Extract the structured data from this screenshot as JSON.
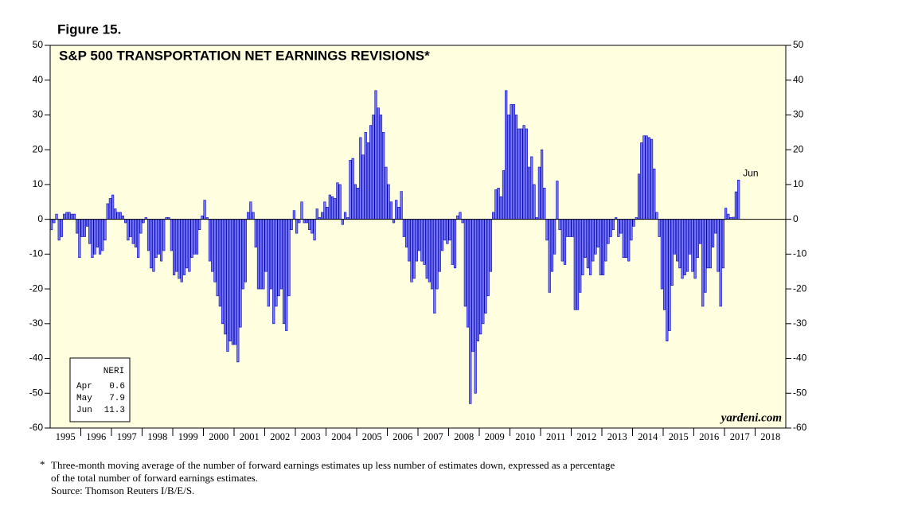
{
  "chart_data": {
    "type": "bar",
    "figure_label": "Figure 15.",
    "title": "S&P 500 TRANSPORTATION NET EARNINGS REVISIONS*",
    "categories": [
      "1995",
      "1996",
      "1997",
      "1998",
      "1999",
      "2000",
      "2001",
      "2002",
      "2003",
      "2004",
      "2005",
      "2006",
      "2007",
      "2008",
      "2009",
      "2010",
      "2011",
      "2012",
      "2013",
      "2014",
      "2015",
      "2016",
      "2017",
      "2018"
    ],
    "values": [
      [
        -3,
        -1,
        1.5,
        -6,
        -5,
        1.5,
        2,
        2,
        1.5,
        1.5,
        -4,
        -11
      ],
      [
        -5,
        -5,
        -2,
        -7,
        -11,
        -10,
        -8,
        -10,
        -9,
        -6,
        4.5,
        6
      ],
      [
        7,
        3,
        2,
        2,
        1,
        -1,
        -6,
        -5,
        -7,
        -8,
        -11,
        -4
      ],
      [
        -1,
        0.5,
        -9,
        -14,
        -15,
        -11,
        -10,
        -12,
        -9,
        0.5,
        0.5,
        -9
      ],
      [
        -16,
        -15,
        -17,
        -18,
        -16,
        -14,
        -15,
        -11,
        -10,
        -10,
        -3,
        1
      ],
      [
        5.5,
        0.5,
        -12,
        -15,
        -18,
        -22,
        -25,
        -30,
        -33,
        -38,
        -35,
        -36
      ],
      [
        -36,
        -41,
        -31,
        -20,
        -18,
        2,
        5,
        2,
        -8,
        -20,
        -20,
        -20
      ],
      [
        -15,
        -25,
        -20,
        -30,
        -25,
        -22,
        -20,
        -30,
        -32,
        -22,
        -3,
        2.5
      ],
      [
        -4,
        -1,
        5,
        -1,
        -1,
        -3,
        -4,
        -6,
        3,
        0.5,
        2,
        5
      ],
      [
        3.5,
        7,
        6.5,
        6,
        10.5,
        10,
        -1.5,
        2,
        0.5,
        17,
        17.5,
        10
      ],
      [
        9,
        23.5,
        18.5,
        25,
        22,
        27,
        30,
        37,
        32,
        30,
        25,
        15
      ],
      [
        10,
        5,
        -1,
        5.5,
        3.5,
        8,
        -5,
        -8,
        -12,
        -18,
        -17,
        -12
      ],
      [
        -9,
        -12,
        -13,
        -17,
        -18,
        -20,
        -27,
        -20,
        -15,
        -9,
        -6,
        -7
      ],
      [
        -6,
        -13,
        -14,
        1,
        2,
        -1,
        -25,
        -31,
        -53,
        -38,
        -50,
        -35
      ],
      [
        -33,
        -30,
        -27,
        -22,
        -15,
        2,
        8.5,
        9,
        6.5,
        14,
        37,
        30
      ],
      [
        33,
        33,
        30,
        26,
        26,
        27,
        26,
        15,
        18,
        10,
        0.5,
        15
      ],
      [
        20,
        9,
        -6,
        -21,
        -15,
        -10,
        11,
        -3,
        -12,
        -13,
        -5,
        -5
      ],
      [
        -5,
        -26,
        -26,
        -21,
        -16,
        -11,
        -14,
        -16,
        -12,
        -10,
        -8,
        -16
      ],
      [
        -16,
        -12,
        -7,
        -5,
        -3,
        0.5,
        -5,
        -4,
        -11,
        -11,
        -12,
        -6
      ],
      [
        -2,
        0.5,
        13,
        22,
        24,
        24,
        23.5,
        23,
        14.5,
        2,
        -5,
        -20
      ],
      [
        -26,
        -35,
        -32,
        -19,
        -10,
        -12,
        -14,
        -17,
        -16,
        -15,
        -10,
        -15
      ],
      [
        -17,
        -11,
        -7,
        -25,
        -21,
        -14,
        -14,
        -8,
        -4,
        -15,
        -25,
        -14
      ],
      [
        3.2,
        1.5,
        0.5,
        0.6,
        7.9,
        11.3
      ],
      []
    ],
    "color": "#7878ff",
    "ylim": [
      -60,
      50
    ],
    "yticks": [
      -60,
      -50,
      -40,
      -30,
      -20,
      -10,
      0,
      10,
      20,
      30,
      40,
      50
    ],
    "annotation": "Jun",
    "legend_table": {
      "title": "NERI",
      "rows": [
        [
          "Apr",
          0.6
        ],
        [
          "May",
          7.9
        ],
        [
          "Jun",
          11.3
        ]
      ]
    },
    "source_mark": "yardeni.com",
    "footnote_marker": "*",
    "footnote": [
      "Three-month moving average of the number of forward earnings estimates up less number of estimates down, expressed as a percentage",
      "of the total number of forward earnings estimates.",
      "Source: Thomson Reuters I/B/E/S."
    ]
  }
}
